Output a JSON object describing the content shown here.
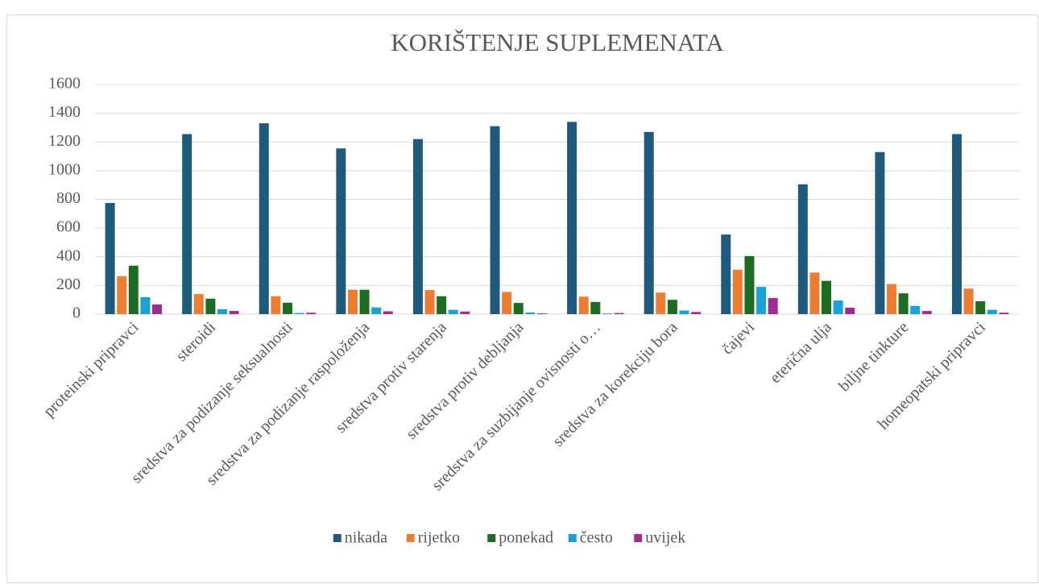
{
  "chart_data": {
    "type": "bar",
    "title": "KORIŠTENJE SUPLEMENATA",
    "categories": [
      "proteinski pripravci",
      "steroidi",
      "sredstva za podizanje seksualnosti",
      "sredstva za podizanje raspoloženja",
      "sredstva protiv starenja",
      "sredstva protiv debljanja",
      "sredstva za suzbijanje ovisnosti o…",
      "sredstva za korekciju bora",
      "čajevi",
      "eterična ulja",
      "biljne tinkture",
      "homeopatski pripravci"
    ],
    "series": [
      {
        "name": "nikada",
        "color": "#1f5a7e",
        "values": [
          775,
          1255,
          1330,
          1155,
          1220,
          1310,
          1340,
          1270,
          555,
          905,
          1130,
          1255
        ]
      },
      {
        "name": "rijetko",
        "color": "#ed7d31",
        "values": [
          265,
          140,
          125,
          170,
          168,
          155,
          122,
          150,
          310,
          290,
          210,
          178
        ]
      },
      {
        "name": "ponekad",
        "color": "#1e6b24",
        "values": [
          338,
          108,
          80,
          170,
          125,
          78,
          85,
          100,
          405,
          232,
          145,
          90
        ]
      },
      {
        "name": "često",
        "color": "#1ba1d9",
        "values": [
          118,
          35,
          8,
          47,
          30,
          12,
          5,
          25,
          190,
          95,
          57,
          30
        ]
      },
      {
        "name": "uvijek",
        "color": "#a02b93",
        "values": [
          68,
          22,
          10,
          20,
          18,
          5,
          8,
          15,
          112,
          45,
          22,
          10
        ]
      }
    ],
    "ylim": [
      0,
      1600
    ],
    "yticks": [
      0,
      200,
      400,
      600,
      800,
      1000,
      1200,
      1400,
      1600
    ],
    "grid": true,
    "legend": "bottom"
  }
}
